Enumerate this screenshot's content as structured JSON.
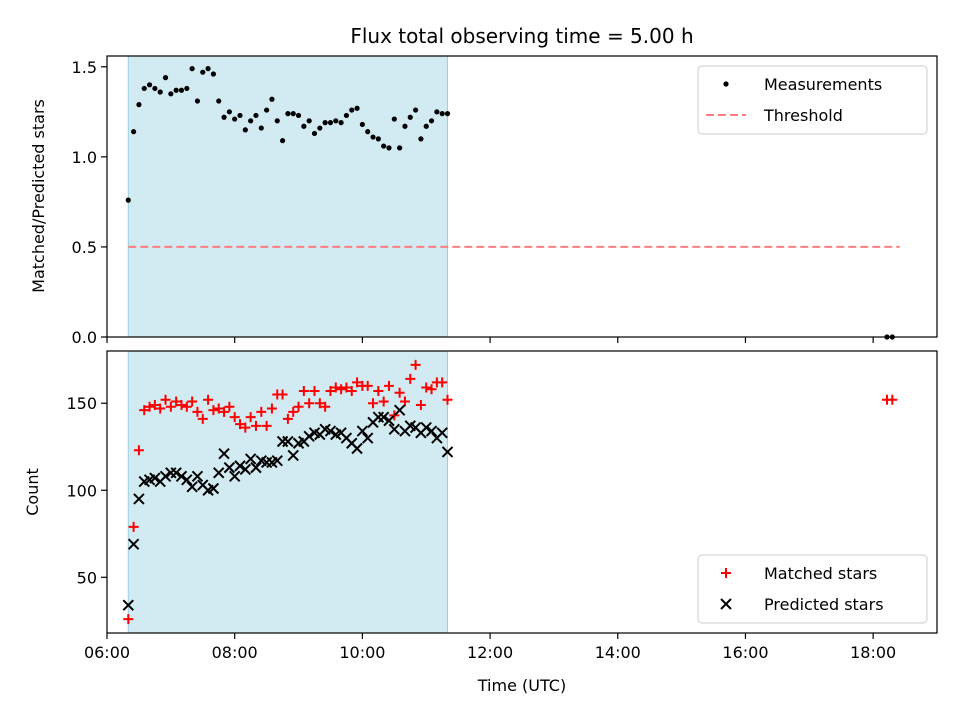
{
  "chart_data": [
    {
      "type": "scatter",
      "title": "Flux total observing time = 5.00 h",
      "xlabel": "",
      "ylabel": "Matched/Predicted stars",
      "xlim": [
        "06:00",
        "19:00"
      ],
      "ylim": [
        0.0,
        1.56
      ],
      "yticks": [
        {
          "v": 0.0,
          "label": "0.0"
        },
        {
          "v": 0.5,
          "label": "0.5"
        },
        {
          "v": 1.0,
          "label": "1.0"
        },
        {
          "v": 1.5,
          "label": "1.5"
        }
      ],
      "xticks": [
        "06:00",
        "08:00",
        "10:00",
        "12:00",
        "14:00",
        "16:00",
        "18:00"
      ],
      "grid": false,
      "legend_position": "top-right",
      "shaded_span": [
        "06:20",
        "11:20"
      ],
      "shade_color": "#add8e6",
      "series": [
        {
          "name": "Measurements",
          "marker": "dot",
          "color": "#000000",
          "x": [
            "06:20",
            "06:25",
            "06:30",
            "06:35",
            "06:40",
            "06:45",
            "06:50",
            "06:55",
            "07:00",
            "07:05",
            "07:10",
            "07:15",
            "07:20",
            "07:25",
            "07:30",
            "07:35",
            "07:40",
            "07:45",
            "07:50",
            "07:55",
            "08:00",
            "08:05",
            "08:10",
            "08:15",
            "08:20",
            "08:25",
            "08:30",
            "08:35",
            "08:40",
            "08:45",
            "08:50",
            "08:55",
            "09:00",
            "09:05",
            "09:10",
            "09:15",
            "09:20",
            "09:25",
            "09:30",
            "09:35",
            "09:40",
            "09:45",
            "09:50",
            "09:55",
            "10:00",
            "10:05",
            "10:10",
            "10:15",
            "10:20",
            "10:25",
            "10:30",
            "10:35",
            "10:40",
            "10:45",
            "10:50",
            "10:55",
            "11:00",
            "11:05",
            "11:10",
            "11:15",
            "11:20",
            "18:13",
            "18:18"
          ],
          "values": [
            0.76,
            1.14,
            1.29,
            1.38,
            1.4,
            1.38,
            1.36,
            1.44,
            1.35,
            1.37,
            1.37,
            1.38,
            1.49,
            1.31,
            1.47,
            1.49,
            1.46,
            1.31,
            1.22,
            1.25,
            1.21,
            1.23,
            1.15,
            1.2,
            1.23,
            1.16,
            1.26,
            1.32,
            1.2,
            1.09,
            1.24,
            1.24,
            1.23,
            1.17,
            1.2,
            1.13,
            1.16,
            1.19,
            1.19,
            1.2,
            1.19,
            1.23,
            1.26,
            1.27,
            1.18,
            1.14,
            1.11,
            1.1,
            1.06,
            1.05,
            1.21,
            1.05,
            1.17,
            1.22,
            1.26,
            1.1,
            1.17,
            1.2,
            1.25,
            1.24,
            1.24,
            0.0,
            0.0
          ]
        },
        {
          "name": "Threshold",
          "marker": "dashed-line",
          "color": "#ff7f7f",
          "x": [
            "06:20",
            "18:25"
          ],
          "values": [
            0.5,
            0.5
          ]
        }
      ]
    },
    {
      "type": "scatter",
      "title": "",
      "xlabel": "Time (UTC)",
      "ylabel": "Count",
      "xlim": [
        "06:00",
        "19:00"
      ],
      "ylim": [
        18,
        180
      ],
      "yticks": [
        {
          "v": 50,
          "label": "50"
        },
        {
          "v": 100,
          "label": "100"
        },
        {
          "v": 150,
          "label": "150"
        }
      ],
      "xticks": [
        "06:00",
        "08:00",
        "10:00",
        "12:00",
        "14:00",
        "16:00",
        "18:00"
      ],
      "grid": false,
      "legend_position": "bottom-right",
      "shaded_span": [
        "06:20",
        "11:20"
      ],
      "shade_color": "#add8e6",
      "series": [
        {
          "name": "Matched stars",
          "marker": "plus",
          "color": "#ff0000",
          "x": [
            "06:20",
            "06:25",
            "06:30",
            "06:35",
            "06:40",
            "06:45",
            "06:50",
            "06:55",
            "07:00",
            "07:05",
            "07:10",
            "07:15",
            "07:20",
            "07:25",
            "07:30",
            "07:35",
            "07:40",
            "07:45",
            "07:50",
            "07:55",
            "08:00",
            "08:05",
            "08:10",
            "08:15",
            "08:20",
            "08:25",
            "08:30",
            "08:35",
            "08:40",
            "08:45",
            "08:50",
            "08:55",
            "09:00",
            "09:05",
            "09:10",
            "09:15",
            "09:20",
            "09:25",
            "09:30",
            "09:35",
            "09:40",
            "09:45",
            "09:50",
            "09:55",
            "10:00",
            "10:05",
            "10:10",
            "10:15",
            "10:20",
            "10:25",
            "10:30",
            "10:35",
            "10:40",
            "10:45",
            "10:50",
            "10:55",
            "11:00",
            "11:05",
            "11:10",
            "11:15",
            "11:20",
            "18:13",
            "18:18"
          ],
          "values": [
            26,
            79,
            123,
            146,
            148,
            149,
            147,
            152,
            148,
            151,
            149,
            148,
            151,
            145,
            141,
            152,
            146,
            147,
            145,
            148,
            142,
            138,
            136,
            142,
            137,
            145,
            137,
            147,
            155,
            155,
            141,
            145,
            148,
            157,
            150,
            157,
            150,
            148,
            157,
            159,
            158,
            159,
            157,
            162,
            160,
            160,
            150,
            157,
            151,
            160,
            143,
            156,
            151,
            164,
            172,
            149,
            159,
            158,
            162,
            162,
            152,
            152,
            152
          ]
        },
        {
          "name": "Predicted stars",
          "marker": "x",
          "color": "#000000",
          "x": [
            "06:20",
            "06:25",
            "06:30",
            "06:35",
            "06:40",
            "06:45",
            "06:50",
            "06:55",
            "07:00",
            "07:05",
            "07:10",
            "07:15",
            "07:20",
            "07:25",
            "07:30",
            "07:35",
            "07:40",
            "07:45",
            "07:50",
            "07:55",
            "08:00",
            "08:05",
            "08:10",
            "08:15",
            "08:20",
            "08:25",
            "08:30",
            "08:35",
            "08:40",
            "08:45",
            "08:50",
            "08:55",
            "09:00",
            "09:05",
            "09:10",
            "09:15",
            "09:20",
            "09:25",
            "09:30",
            "09:35",
            "09:40",
            "09:45",
            "09:50",
            "09:55",
            "10:00",
            "10:05",
            "10:10",
            "10:15",
            "10:20",
            "10:25",
            "10:30",
            "10:35",
            "10:40",
            "10:45",
            "10:50",
            "10:55",
            "11:00",
            "11:05",
            "11:10",
            "11:15",
            "11:20"
          ],
          "values": [
            34,
            69,
            95,
            105,
            106,
            107,
            105,
            108,
            110,
            110,
            108,
            106,
            102,
            108,
            103,
            100,
            101,
            110,
            121,
            113,
            108,
            114,
            112,
            118,
            113,
            117,
            116,
            116,
            117,
            128,
            128,
            120,
            127,
            128,
            131,
            133,
            132,
            135,
            134,
            132,
            133,
            130,
            127,
            124,
            134,
            130,
            139,
            142,
            142,
            140,
            135,
            146,
            134,
            137,
            136,
            133,
            136,
            134,
            130,
            133,
            122
          ]
        }
      ]
    }
  ]
}
